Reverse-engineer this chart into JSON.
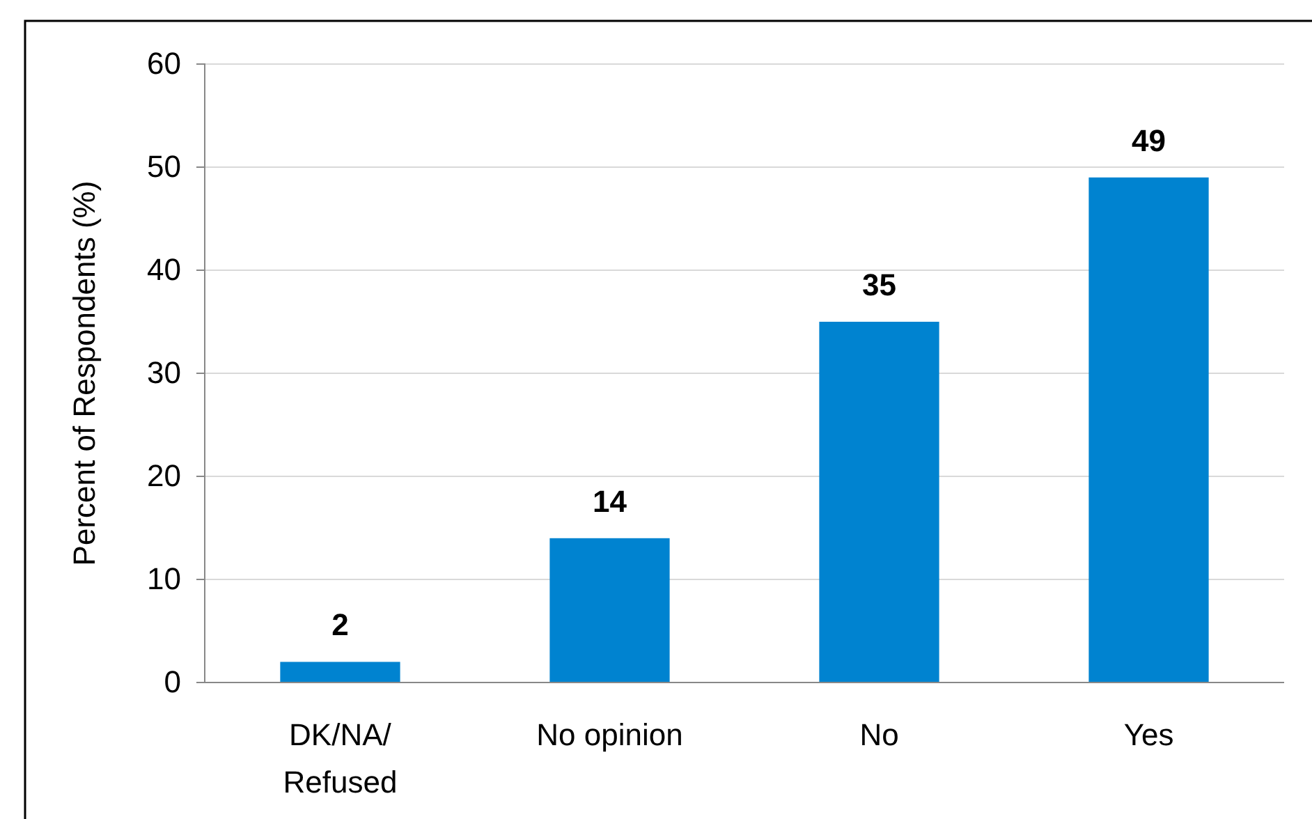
{
  "chart_data": {
    "type": "bar",
    "ylabel": "Percent of Respondents (%)",
    "categories": [
      "DK/NA/\nRefused",
      "No opinion",
      "No",
      "Yes"
    ],
    "values": [
      2,
      14,
      35,
      49
    ],
    "color": "#0083d0",
    "ylim": [
      0,
      60
    ],
    "yticks": [
      0,
      10,
      20,
      30,
      40,
      50,
      60
    ],
    "grid": "y",
    "data_labels": true,
    "value_labels": [
      "2",
      "14",
      "35",
      "49"
    ]
  }
}
